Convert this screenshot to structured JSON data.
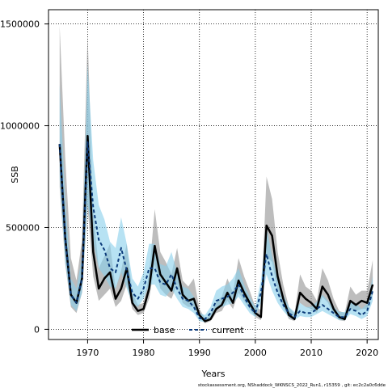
{
  "chart_data": {
    "type": "line",
    "title": "",
    "xlabel": "Years",
    "ylabel": "SSB",
    "xlim": [
      1963,
      2022
    ],
    "ylim": [
      -50000,
      1570000
    ],
    "xticks": [
      1970,
      1980,
      1990,
      2000,
      2010,
      2020
    ],
    "xtick_labels": [
      "1970",
      "1980",
      "1990",
      "2000",
      "2010",
      "2020"
    ],
    "yticks": [
      0,
      500000,
      1000000,
      1500000
    ],
    "ytick_labels": [
      "0",
      "500000",
      "1000000",
      "1500000"
    ],
    "grid": true,
    "legend_position": "bottom-center",
    "footer": "stockassessment.org, NShaddock_WKNSCS_2022_Run1, r15359 , git: ec2c2a0c6dde",
    "series": [
      {
        "name": "base",
        "color": "#000000",
        "band_color": "#999999",
        "x": [
          1965,
          1966,
          1967,
          1968,
          1969,
          1970,
          1971,
          1972,
          1973,
          1974,
          1975,
          1976,
          1977,
          1978,
          1979,
          1980,
          1981,
          1982,
          1983,
          1984,
          1985,
          1986,
          1987,
          1988,
          1989,
          1990,
          1991,
          1992,
          1993,
          1994,
          1995,
          1996,
          1997,
          1998,
          1999,
          2000,
          2001,
          2002,
          2003,
          2004,
          2005,
          2006,
          2007,
          2008,
          2009,
          2010,
          2011,
          2012,
          2013,
          2014,
          2015,
          2016,
          2017,
          2018,
          2019,
          2020,
          2021
        ],
        "values": [
          910000,
          450000,
          170000,
          130000,
          250000,
          950000,
          380000,
          200000,
          250000,
          280000,
          150000,
          200000,
          300000,
          130000,
          90000,
          100000,
          200000,
          410000,
          270000,
          230000,
          190000,
          300000,
          170000,
          140000,
          150000,
          70000,
          40000,
          50000,
          100000,
          120000,
          180000,
          130000,
          240000,
          180000,
          130000,
          80000,
          60000,
          510000,
          460000,
          260000,
          150000,
          70000,
          50000,
          180000,
          150000,
          130000,
          100000,
          210000,
          170000,
          100000,
          60000,
          50000,
          140000,
          120000,
          140000,
          130000,
          220000
        ],
        "lower": [
          700000,
          320000,
          110000,
          80000,
          180000,
          600000,
          260000,
          140000,
          170000,
          200000,
          110000,
          140000,
          220000,
          100000,
          70000,
          80000,
          150000,
          320000,
          200000,
          170000,
          150000,
          220000,
          130000,
          110000,
          110000,
          55000,
          30000,
          40000,
          80000,
          90000,
          140000,
          100000,
          180000,
          140000,
          100000,
          60000,
          45000,
          360000,
          330000,
          190000,
          110000,
          50000,
          40000,
          130000,
          110000,
          100000,
          80000,
          160000,
          130000,
          75000,
          45000,
          40000,
          100000,
          90000,
          100000,
          100000,
          170000
        ],
        "upper": [
          1490000,
          840000,
          350000,
          240000,
          440000,
          1450000,
          580000,
          300000,
          360000,
          420000,
          200000,
          290000,
          420000,
          180000,
          120000,
          130000,
          270000,
          590000,
          380000,
          330000,
          270000,
          400000,
          240000,
          210000,
          250000,
          100000,
          55000,
          70000,
          140000,
          160000,
          250000,
          180000,
          350000,
          260000,
          190000,
          110000,
          95000,
          750000,
          640000,
          380000,
          220000,
          110000,
          75000,
          270000,
          210000,
          190000,
          140000,
          300000,
          240000,
          150000,
          90000,
          80000,
          210000,
          170000,
          190000,
          190000,
          340000
        ]
      },
      {
        "name": "current",
        "color": "#0b3a7a",
        "band_color": "#87ceeb",
        "x": [
          1965,
          1966,
          1967,
          1968,
          1969,
          1970,
          1971,
          1972,
          1973,
          1974,
          1975,
          1976,
          1977,
          1978,
          1979,
          1980,
          1981,
          1982,
          1983,
          1984,
          1985,
          1986,
          1987,
          1988,
          1989,
          1990,
          1991,
          1992,
          1993,
          1994,
          1995,
          1996,
          1997,
          1998,
          1999,
          2000,
          2001,
          2002,
          2003,
          2004,
          2005,
          2006,
          2007,
          2008,
          2009,
          2010,
          2011,
          2012,
          2013,
          2014,
          2015,
          2016,
          2017,
          2018,
          2019,
          2020,
          2021
        ],
        "values": [
          910000,
          450000,
          170000,
          130000,
          250000,
          920000,
          600000,
          440000,
          390000,
          300000,
          280000,
          400000,
          290000,
          180000,
          150000,
          200000,
          300000,
          300000,
          230000,
          220000,
          270000,
          200000,
          150000,
          140000,
          110000,
          55000,
          50000,
          80000,
          140000,
          150000,
          160000,
          180000,
          220000,
          160000,
          110000,
          80000,
          180000,
          370000,
          260000,
          180000,
          120000,
          80000,
          60000,
          90000,
          80000,
          80000,
          100000,
          120000,
          100000,
          80000,
          60000,
          60000,
          100000,
          90000,
          70000,
          90000,
          190000
        ],
        "lower": [
          740000,
          330000,
          120000,
          90000,
          180000,
          620000,
          430000,
          300000,
          260000,
          210000,
          200000,
          280000,
          200000,
          130000,
          110000,
          150000,
          220000,
          220000,
          170000,
          160000,
          200000,
          150000,
          110000,
          100000,
          80000,
          40000,
          35000,
          60000,
          100000,
          110000,
          120000,
          130000,
          160000,
          120000,
          80000,
          60000,
          130000,
          270000,
          190000,
          130000,
          90000,
          60000,
          45000,
          65000,
          60000,
          60000,
          75000,
          90000,
          75000,
          60000,
          45000,
          45000,
          75000,
          65000,
          50000,
          65000,
          140000
        ],
        "upper": [
          1200000,
          640000,
          250000,
          200000,
          360000,
          1300000,
          830000,
          610000,
          540000,
          430000,
          400000,
          550000,
          420000,
          250000,
          210000,
          280000,
          420000,
          420000,
          320000,
          310000,
          380000,
          280000,
          210000,
          200000,
          160000,
          80000,
          70000,
          110000,
          190000,
          210000,
          220000,
          250000,
          300000,
          220000,
          160000,
          110000,
          240000,
          500000,
          360000,
          250000,
          170000,
          110000,
          85000,
          130000,
          110000,
          110000,
          135000,
          170000,
          140000,
          110000,
          85000,
          85000,
          140000,
          125000,
          100000,
          125000,
          260000
        ]
      }
    ]
  }
}
